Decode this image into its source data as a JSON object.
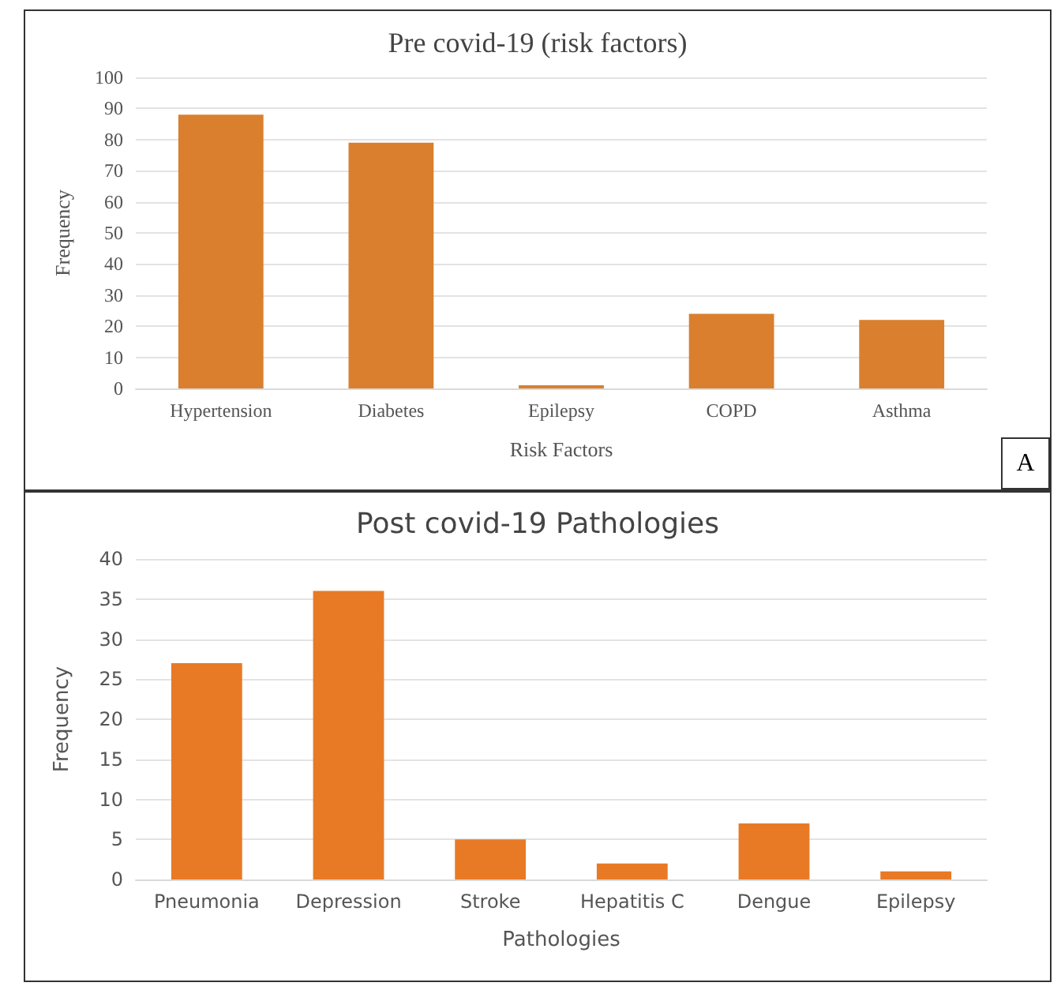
{
  "chart_data": [
    {
      "type": "bar",
      "title": "Pre covid-19 (risk factors)",
      "xlabel": "Risk Factors",
      "ylabel": "Frequency",
      "categories": [
        "Hypertension",
        "Diabetes",
        "Epilepsy",
        "COPD",
        "Asthma"
      ],
      "values": [
        88,
        79,
        1,
        24,
        22
      ],
      "color": "#d97f2e",
      "ylim": [
        0,
        100
      ],
      "yticks": [
        0,
        10,
        20,
        30,
        40,
        50,
        60,
        70,
        80,
        90,
        100
      ],
      "grid": "y",
      "annotations": [
        "A"
      ]
    },
    {
      "type": "bar",
      "title": "Post covid-19 Pathologies",
      "xlabel": "Pathologies",
      "ylabel": "Frequency",
      "categories": [
        "Pneumonia",
        "Depression",
        "Stroke",
        "Hepatitis C",
        "Dengue",
        "Epilepsy"
      ],
      "values": [
        27,
        36,
        5,
        2,
        7,
        1
      ],
      "color": "#e87a26",
      "ylim": [
        0,
        40
      ],
      "yticks": [
        0,
        5,
        10,
        15,
        20,
        25,
        30,
        35,
        40
      ],
      "grid": "y"
    }
  ]
}
